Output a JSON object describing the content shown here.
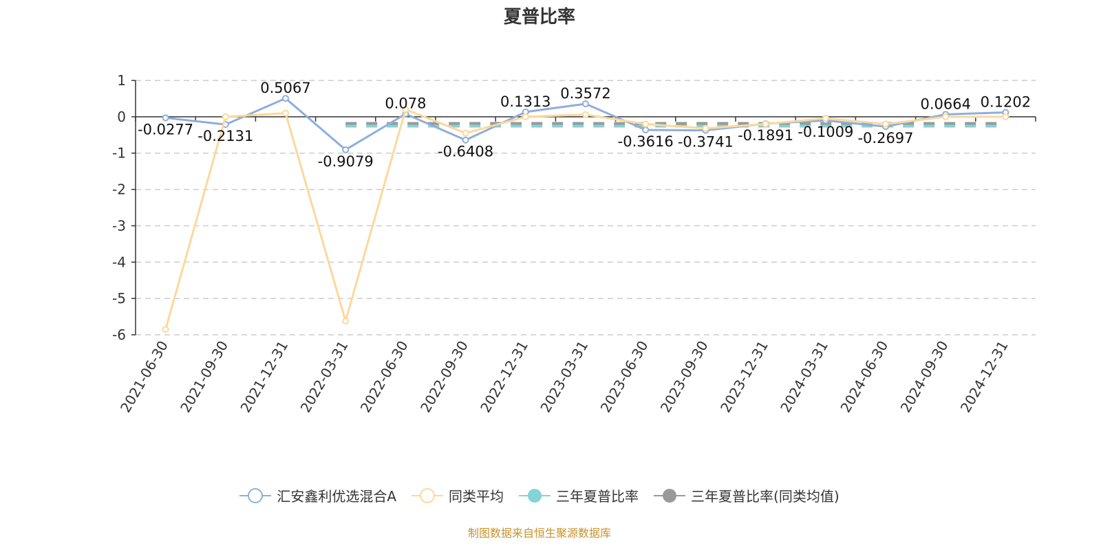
{
  "chart_data": {
    "type": "line",
    "title": "夏普比率",
    "xlabel": "",
    "ylabel": "",
    "ylim": [
      -6,
      1
    ],
    "yticks": [
      1,
      0,
      -1,
      -2,
      -3,
      -4,
      -5,
      -6
    ],
    "grid": true,
    "legend_position": "bottom",
    "categories": [
      "2021-06-30",
      "2021-09-30",
      "2021-12-31",
      "2022-03-31",
      "2022-06-30",
      "2022-09-30",
      "2022-12-31",
      "2023-03-31",
      "2023-06-30",
      "2023-09-30",
      "2023-12-31",
      "2024-03-31",
      "2024-06-30",
      "2024-09-30",
      "2024-12-31"
    ],
    "series": [
      {
        "name": "汇安鑫利优选混合A",
        "color": "#8eaedc",
        "values": [
          -0.0277,
          -0.2131,
          0.5067,
          -0.9079,
          0.078,
          -0.6408,
          0.1313,
          0.3572,
          -0.3616,
          -0.3741,
          -0.1891,
          -0.1009,
          -0.2697,
          0.0664,
          0.1202
        ],
        "labels": [
          "-0.0277",
          "-0.2131",
          "0.5067",
          "-0.9079",
          "0.078",
          "-0.6408",
          "0.1313",
          "0.3572",
          "-0.3616",
          "-0.3741",
          "-0.1891",
          "-0.1009",
          "-0.2697",
          "0.0664",
          "0.1202"
        ]
      },
      {
        "name": "同类平均",
        "color": "#fdd89a",
        "values": [
          -5.85,
          0.0,
          0.1,
          -5.62,
          0.2,
          -0.45,
          0.0,
          0.06,
          -0.2,
          -0.32,
          -0.2,
          -0.04,
          -0.2,
          0.0,
          0.0
        ]
      },
      {
        "name": "三年夏普比率",
        "color": "#84d3d6",
        "style": "dashed",
        "values": [
          null,
          null,
          null,
          -0.22,
          -0.22,
          -0.22,
          -0.22,
          -0.22,
          -0.22,
          -0.22,
          -0.22,
          -0.22,
          -0.22,
          -0.22,
          -0.22
        ]
      },
      {
        "name": "三年夏普比率(同类均值)",
        "color": "#999999",
        "style": "dashed",
        "values": [
          null,
          null,
          null,
          -0.2,
          -0.2,
          -0.2,
          -0.2,
          -0.2,
          -0.2,
          -0.2,
          -0.2,
          -0.2,
          -0.2,
          -0.2,
          -0.2
        ]
      }
    ]
  },
  "legend": {
    "items": [
      {
        "label": "汇安鑫利优选混合A",
        "icon": "hollow-circle-line",
        "color": "#8eaedc"
      },
      {
        "label": "同类平均",
        "icon": "hollow-circle-line",
        "color": "#fdd89a"
      },
      {
        "label": "三年夏普比率",
        "icon": "filled-circle-line",
        "color": "#84d3d6"
      },
      {
        "label": "三年夏普比率(同类均值)",
        "icon": "filled-circle-line",
        "color": "#999999"
      }
    ]
  },
  "footer": {
    "source_text": "制图数据来自恒生聚源数据库"
  }
}
